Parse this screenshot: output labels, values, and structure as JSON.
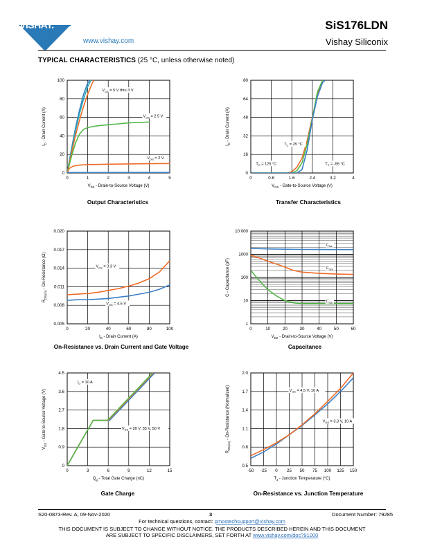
{
  "header": {
    "logo_text": "VISHAY.",
    "website": "www.vishay.com",
    "part_number": "SiS176LDN",
    "company": "Vishay Siliconix"
  },
  "section": {
    "title_bold": "TYPICAL CHARACTERISTICS",
    "title_rest": " (25 °C, unless otherwise noted)"
  },
  "colors": {
    "blue": "#3b7fc4",
    "orange": "#ee6b26",
    "green": "#53b848",
    "teal": "#2aa8b4",
    "vishay_blue": "#2a7ab8"
  },
  "charts": {
    "output": {
      "caption": "Output Characteristics"
    },
    "transfer": {
      "caption": "Transfer Characteristics"
    },
    "rds_id": {
      "caption": "On-Resistance vs. Drain Current and Gate Voltage"
    },
    "capacitance": {
      "caption": "Capacitance"
    },
    "gate_charge": {
      "caption": "Gate Charge"
    },
    "rds_tj": {
      "caption": "On-Resistance vs. Junction Temperature"
    }
  },
  "chart_data": [
    {
      "id": "output",
      "type": "line",
      "title": "Output Characteristics",
      "xlabel": "VDS - Drain-to-Source Voltage (V)",
      "ylabel": "ID - Drain Current (A)",
      "xlim": [
        0,
        5
      ],
      "ylim": [
        0,
        100
      ],
      "xticks": [
        0,
        1,
        2,
        3,
        4,
        5
      ],
      "yticks": [
        0,
        20,
        40,
        60,
        80,
        100
      ],
      "grid": true,
      "series": [
        {
          "color": "blue",
          "x": [
            0,
            0.2,
            0.4,
            0.6,
            0.8,
            1.0,
            1.1
          ],
          "y": [
            0,
            25,
            48,
            68,
            85,
            97,
            100
          ]
        },
        {
          "color": "teal",
          "x": [
            0,
            0.2,
            0.4,
            0.6,
            0.8,
            1.0,
            1.15
          ],
          "y": [
            0,
            23,
            45,
            64,
            80,
            93,
            100
          ]
        },
        {
          "color": "orange",
          "x": [
            0,
            0.2,
            0.4,
            0.6,
            0.8,
            1.0,
            1.2,
            1.3
          ],
          "y": [
            0,
            20,
            40,
            57,
            72,
            85,
            96,
            100
          ]
        },
        {
          "color": "green",
          "x": [
            0,
            0.2,
            0.4,
            0.6,
            0.8,
            1.0,
            1.5,
            2,
            2.5,
            3,
            3.5,
            4
          ],
          "y": [
            0,
            17,
            32,
            42,
            47,
            49,
            51,
            52,
            53,
            54,
            54.5,
            55
          ]
        },
        {
          "color": "orange",
          "x": [
            0,
            0.1,
            0.3,
            0.6,
            1,
            2,
            3,
            4,
            5
          ],
          "y": [
            0,
            5,
            7.5,
            8.5,
            9,
            9.5,
            9.8,
            10,
            10.2
          ]
        },
        {
          "color": "blue",
          "x": [
            0,
            5
          ],
          "y": [
            0.5,
            0.6
          ]
        }
      ],
      "annotations": [
        {
          "main": "V",
          "sub": "GS",
          "rest": " = 5 V thru 3 V",
          "x": 1.7,
          "y": 88
        },
        {
          "main": "V",
          "sub": "GS",
          "rest": " = 2.5 V",
          "x": 3.7,
          "y": 60
        },
        {
          "main": "V",
          "sub": "GS",
          "rest": " = 2 V",
          "x": 3.9,
          "y": 15
        }
      ]
    },
    {
      "id": "transfer",
      "type": "line",
      "title": "Transfer Characteristics",
      "xlabel": "VGS - Gate-to-Source Voltage (V)",
      "ylabel": "ID - Drain Current (A)",
      "xlim": [
        0,
        4
      ],
      "ylim": [
        0,
        80
      ],
      "xticks": [
        0,
        0.8,
        1.6,
        2.4,
        3.2,
        4
      ],
      "yticks": [
        0,
        16,
        32,
        48,
        64,
        80
      ],
      "grid": true,
      "series": [
        {
          "color": "orange",
          "x": [
            0,
            1.4,
            1.6,
            1.8,
            2.0,
            2.2,
            2.4,
            2.6,
            2.8
          ],
          "y": [
            0,
            0,
            1,
            5,
            13,
            28,
            48,
            68,
            80
          ]
        },
        {
          "color": "green",
          "x": [
            0,
            1.6,
            1.8,
            2.0,
            2.2,
            2.4,
            2.6,
            2.8
          ],
          "y": [
            0,
            0,
            2,
            9,
            25,
            47,
            70,
            80
          ]
        },
        {
          "color": "blue",
          "x": [
            0,
            1.8,
            2.0,
            2.2,
            2.4,
            2.6,
            2.8,
            2.9
          ],
          "y": [
            0,
            0,
            3,
            20,
            46,
            66,
            78,
            80
          ]
        }
      ],
      "annotations": [
        {
          "main": "T",
          "sub": "C",
          "rest": " = 25 °C",
          "x": 1.3,
          "y": 24
        },
        {
          "main": "T",
          "sub": "C",
          "rest": " = 125 °C",
          "x": 0.2,
          "y": 7
        },
        {
          "main": "T",
          "sub": "C",
          "rest": " = -55 °C",
          "x": 2.9,
          "y": 7
        }
      ]
    },
    {
      "id": "rds_id",
      "type": "line",
      "title": "On-Resistance vs. Drain Current and Gate Voltage",
      "xlabel": "ID - Drain Current (A)",
      "ylabel": "RDS(on) - On-Resistance (Ω)",
      "xlim": [
        0,
        100
      ],
      "ylim": [
        0.005,
        0.02
      ],
      "xticks": [
        0,
        20,
        40,
        60,
        80,
        100
      ],
      "yticks": [
        0.005,
        0.008,
        0.011,
        0.014,
        0.017,
        0.02
      ],
      "ytick_labels": [
        "0.005",
        "0.008",
        "0.011",
        "0.014",
        "0.017",
        "0.020"
      ],
      "grid": true,
      "series": [
        {
          "color": "orange",
          "x": [
            0,
            10,
            20,
            30,
            40,
            50,
            60,
            70,
            80,
            90,
            100
          ],
          "y": [
            0.0097,
            0.0098,
            0.0099,
            0.0101,
            0.0104,
            0.0107,
            0.0111,
            0.0116,
            0.0123,
            0.0134,
            0.0152
          ]
        },
        {
          "color": "blue",
          "x": [
            0,
            10,
            20,
            30,
            40,
            50,
            60,
            70,
            80,
            90,
            100
          ],
          "y": [
            0.0088,
            0.0089,
            0.0089,
            0.009,
            0.0091,
            0.0093,
            0.0095,
            0.0098,
            0.0101,
            0.0106,
            0.0113
          ]
        }
      ],
      "annotations": [
        {
          "main": "V",
          "sub": "GS",
          "rest": " = 3.3 V",
          "x": 28,
          "y": 0.0141
        },
        {
          "main": "V",
          "sub": "GS",
          "rest": " = 4.5 V",
          "x": 38,
          "y": 0.0081
        }
      ]
    },
    {
      "id": "capacitance",
      "type": "line",
      "title": "Capacitance",
      "xlabel": "VDS - Drain-to-Source Voltage (V)",
      "ylabel": "C - Capacitance (pF)",
      "xlim": [
        0,
        60
      ],
      "ylim": [
        1,
        10000
      ],
      "yscale": "log",
      "xticks": [
        0,
        10,
        20,
        30,
        40,
        50,
        60
      ],
      "yticks": [
        1,
        10,
        100,
        1000,
        10000
      ],
      "ytick_labels": [
        "1",
        "10",
        "100",
        "1000",
        "10 000"
      ],
      "grid": true,
      "series": [
        {
          "color": "blue",
          "x": [
            0,
            10,
            20,
            30,
            40,
            50,
            60
          ],
          "y": [
            1800,
            1700,
            1650,
            1620,
            1610,
            1600,
            1600
          ]
        },
        {
          "color": "orange",
          "x": [
            0,
            5,
            10,
            15,
            20,
            25,
            30,
            40,
            50,
            60
          ],
          "y": [
            900,
            700,
            500,
            380,
            280,
            200,
            170,
            150,
            140,
            135
          ]
        },
        {
          "color": "green",
          "x": [
            0,
            3,
            6,
            10,
            15,
            20,
            25,
            30,
            40,
            50,
            60
          ],
          "y": [
            200,
            110,
            60,
            30,
            16,
            10,
            8,
            7.5,
            7.5,
            7.5,
            7.5
          ]
        }
      ],
      "annotations": [
        {
          "main": "C",
          "sub": "iss",
          "rest": "",
          "x": 44,
          "y": 2300
        },
        {
          "main": "C",
          "sub": "oss",
          "rest": "",
          "x": 44,
          "y": 230
        },
        {
          "main": "C",
          "sub": "rss",
          "rest": "",
          "x": 44,
          "y": 8.5
        }
      ]
    },
    {
      "id": "gate_charge",
      "type": "line",
      "title": "Gate Charge",
      "xlabel": "Qg - Total Gate Charge (nC)",
      "ylabel": "VGS - Gate-to-Source Voltage (V)",
      "xlim": [
        0,
        15
      ],
      "ylim": [
        0,
        4.5
      ],
      "xticks": [
        0,
        3,
        6,
        9,
        12,
        15
      ],
      "yticks": [
        0,
        0.9,
        1.8,
        2.7,
        3.6,
        4.5
      ],
      "ytick_labels": [
        "0",
        "0.9",
        "1.8",
        "2.7",
        "3.6",
        "4.5"
      ],
      "grid": true,
      "series": [
        {
          "color": "blue",
          "x": [
            0,
            3.8,
            6.2,
            12.8
          ],
          "y": [
            0,
            2.2,
            2.2,
            4.5
          ]
        },
        {
          "color": "orange",
          "x": [
            0,
            3.8,
            6.0,
            12.6
          ],
          "y": [
            0,
            2.2,
            2.2,
            4.5
          ]
        },
        {
          "color": "green",
          "x": [
            0,
            3.8,
            5.9,
            12.5
          ],
          "y": [
            0,
            2.2,
            2.2,
            4.5
          ]
        }
      ],
      "annotations": [
        {
          "main": "I",
          "sub": "D",
          "rest": " = 10 A",
          "x": 1.5,
          "y": 4.0
        },
        {
          "main": "V",
          "sub": "DS",
          "rest": " = 20 V, 35 V, 50 V",
          "x": 8.0,
          "y": 1.75
        }
      ]
    },
    {
      "id": "rds_tj",
      "type": "line",
      "title": "On-Resistance vs. Junction Temperature",
      "xlabel": "TJ - Junction Temperature (°C)",
      "ylabel": "RDS(on) - On-Resistance (Normalized)",
      "xlim": [
        -50,
        150
      ],
      "ylim": [
        0.5,
        2.0
      ],
      "xticks": [
        -50,
        -25,
        0,
        25,
        50,
        75,
        100,
        125,
        150
      ],
      "yticks": [
        0.5,
        0.8,
        1.1,
        1.4,
        1.7,
        2.0
      ],
      "ytick_labels": [
        "0.5",
        "0.8",
        "1.1",
        "1.4",
        "1.7",
        "2.0"
      ],
      "grid": true,
      "series": [
        {
          "color": "blue",
          "x": [
            -50,
            -25,
            0,
            25,
            50,
            75,
            100,
            125,
            150
          ],
          "y": [
            0.62,
            0.72,
            0.85,
            1.0,
            1.15,
            1.32,
            1.5,
            1.7,
            1.92
          ]
        },
        {
          "color": "orange",
          "x": [
            -50,
            -25,
            0,
            25,
            50,
            75,
            100,
            125,
            150
          ],
          "y": [
            0.66,
            0.76,
            0.87,
            1.0,
            1.16,
            1.34,
            1.54,
            1.75,
            2.0
          ]
        }
      ],
      "annotations": [
        {
          "main": "V",
          "sub": "GS",
          "rest": " = 4.5 V, 10 A",
          "x": 25,
          "y": 1.7
        },
        {
          "main": "V",
          "sub": "GS",
          "rest": " = 3.3 V, 10 A",
          "x": 90,
          "y": 1.2
        }
      ]
    }
  ],
  "footer": {
    "revision": "S20-0873-Rev. A, 09-Nov-2020",
    "page": "3",
    "doc_number": "Document Number: 79285",
    "tech_prefix": "For technical questions, contact: ",
    "tech_email": "pmostechsupport@vishay.com",
    "disclaimer_1": "THIS DOCUMENT IS SUBJECT TO CHANGE WITHOUT NOTICE. THE PRODUCTS DESCRIBED HEREIN AND THIS DOCUMENT",
    "disclaimer_2_prefix": "ARE SUBJECT TO SPECIFIC DISCLAIMERS, SET FORTH AT ",
    "disclaimer_link": "www.vishay.com/doc?91000"
  }
}
